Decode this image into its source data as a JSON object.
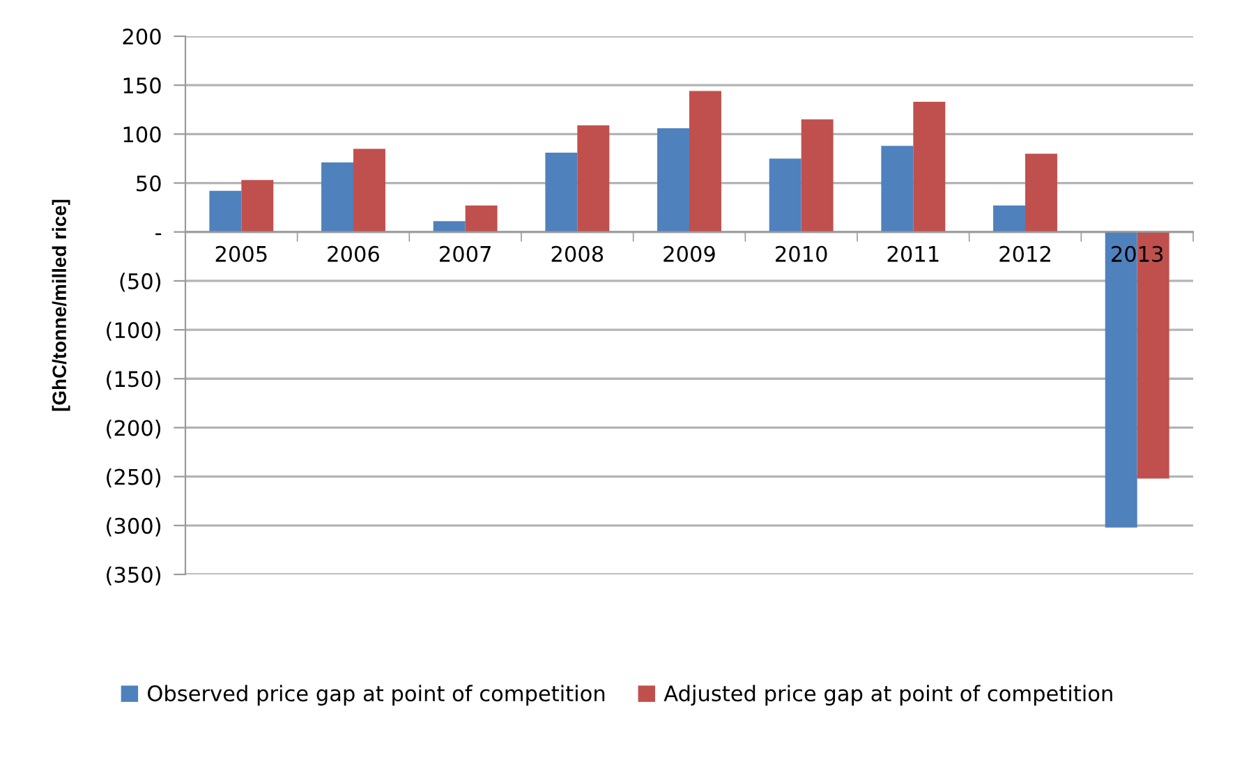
{
  "chart_data": {
    "type": "bar",
    "ylabel": "[GhC/tonne/milled rice]",
    "categories": [
      "2005",
      "2006",
      "2007",
      "2008",
      "2009",
      "2010",
      "2011",
      "2012",
      "2013"
    ],
    "series": [
      {
        "name": "Observed price gap at point of competition",
        "color": "#4f81bd",
        "values": [
          42,
          71,
          11,
          81,
          106,
          75,
          88,
          27,
          -302
        ]
      },
      {
        "name": "Adjusted price gap at point of competition",
        "color": "#c0504d",
        "values": [
          53,
          85,
          27,
          109,
          144,
          115,
          133,
          80,
          -252
        ]
      }
    ],
    "ylim": [
      -350,
      200
    ],
    "yticks": [
      200,
      150,
      100,
      50,
      {
        "value": 0,
        "label": "-"
      },
      {
        "value": -50,
        "label": "(50)"
      },
      {
        "value": -100,
        "label": "(100)"
      },
      {
        "value": -150,
        "label": "(150)"
      },
      {
        "value": -200,
        "label": "(200)"
      },
      {
        "value": -250,
        "label": "(250)"
      },
      {
        "value": -300,
        "label": "(300)"
      },
      {
        "value": -350,
        "label": "(350)"
      }
    ],
    "grid": "y",
    "legend": "bottom"
  }
}
